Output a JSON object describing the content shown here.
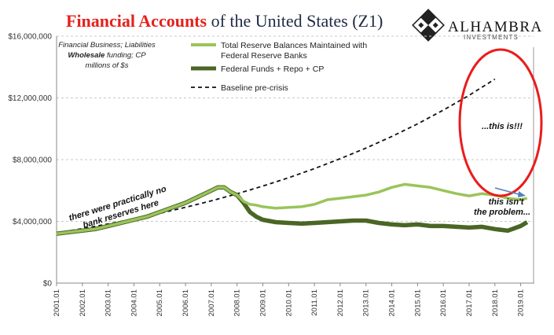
{
  "title": {
    "part1": "Financial Accounts",
    "part2": "of the United States (Z1)"
  },
  "logo": {
    "name": "ALHAMBRA",
    "sub": "INVESTMENTS"
  },
  "colors": {
    "title_red": "#e4211c",
    "reserves": "#9ac45a",
    "funding": "#4a6625",
    "baseline": "#111111",
    "ellipse": "#ea1c1c",
    "arrow": "#4f81bd",
    "grid": "#c8c8c8"
  },
  "note": {
    "line1": "Financial Business; Liabilities",
    "line2a": "Wholesale",
    "line2b": " funding; CP",
    "line3": "millions of $s"
  },
  "annotations": {
    "reserves_note": {
      "line1": "there were practically no",
      "line2": "bank reserves here"
    },
    "this_is": "...this is!!!",
    "this_isnt": {
      "line1": "this isn't",
      "line2": "the problem..."
    }
  },
  "chart_data": {
    "type": "line",
    "x_tick_labels": [
      "2001.01",
      "2002.01",
      "2003.01",
      "2004.01",
      "2005.01",
      "2006.01",
      "2007.01",
      "2008.01",
      "2009.01",
      "2010.01",
      "2011.01",
      "2012.01",
      "2013.01",
      "2014.01",
      "2015.01",
      "2016.01",
      "2017.01",
      "2018.01",
      "2019.01"
    ],
    "y_tick_labels": [
      "$0",
      "$4,000,000",
      "$8,000,000",
      "$12,000,000",
      "$16,000,000"
    ],
    "ylim": [
      0,
      16000000
    ],
    "xlim": [
      2001.0,
      2019.5
    ],
    "grid": true,
    "legend_position": "top-center",
    "series": [
      {
        "name": "Total Reserve Balances Maintained with Federal Reserve Banks",
        "legend_line1": "Total Reserve Balances Maintained with",
        "legend_line2": "Federal Reserve Banks",
        "x": [
          2001.0,
          2001.5,
          2002.0,
          2002.5,
          2003.0,
          2003.5,
          2004.0,
          2004.5,
          2005.0,
          2005.5,
          2006.0,
          2006.5,
          2007.0,
          2007.25,
          2007.5,
          2007.75,
          2008.0,
          2008.25,
          2008.5,
          2008.75,
          2009.0,
          2009.5,
          2010.0,
          2010.5,
          2011.0,
          2011.5,
          2012.0,
          2012.5,
          2013.0,
          2013.5,
          2014.0,
          2014.5,
          2015.0,
          2015.5,
          2016.0,
          2016.5,
          2017.0,
          2017.5,
          2018.0,
          2018.5,
          2019.0,
          2019.25
        ],
        "y": [
          3200000,
          3300000,
          3400000,
          3500000,
          3700000,
          3900000,
          4100000,
          4300000,
          4600000,
          4900000,
          5200000,
          5600000,
          6000000,
          6200000,
          6200000,
          5900000,
          5700000,
          5300000,
          5100000,
          5050000,
          4950000,
          4850000,
          4900000,
          4950000,
          5100000,
          5400000,
          5500000,
          5600000,
          5700000,
          5900000,
          6200000,
          6400000,
          6300000,
          6200000,
          6000000,
          5800000,
          5650000,
          5800000,
          5700000,
          5500000,
          5400000,
          5500000
        ]
      },
      {
        "name": "Federal Funds + Repo + CP",
        "x": [
          2001.0,
          2001.5,
          2002.0,
          2002.5,
          2003.0,
          2003.5,
          2004.0,
          2004.5,
          2005.0,
          2005.5,
          2006.0,
          2006.5,
          2007.0,
          2007.25,
          2007.5,
          2007.75,
          2008.0,
          2008.25,
          2008.5,
          2008.75,
          2009.0,
          2009.5,
          2010.0,
          2010.5,
          2011.0,
          2011.5,
          2012.0,
          2012.5,
          2013.0,
          2013.5,
          2014.0,
          2014.5,
          2015.0,
          2015.5,
          2016.0,
          2016.5,
          2017.0,
          2017.5,
          2018.0,
          2018.5,
          2019.0,
          2019.25
        ],
        "y": [
          3200000,
          3300000,
          3400000,
          3500000,
          3700000,
          3900000,
          4100000,
          4300000,
          4600000,
          4900000,
          5200000,
          5600000,
          6000000,
          6200000,
          6200000,
          5900000,
          5700000,
          5200000,
          4600000,
          4300000,
          4100000,
          3950000,
          3900000,
          3850000,
          3900000,
          3950000,
          4000000,
          4050000,
          4050000,
          3900000,
          3800000,
          3750000,
          3800000,
          3700000,
          3700000,
          3650000,
          3600000,
          3650000,
          3500000,
          3400000,
          3700000,
          3950000
        ]
      },
      {
        "name": "Baseline pre-crisis",
        "x": [
          2001.0,
          2002.0,
          2003.0,
          2004.0,
          2005.0,
          2006.0,
          2007.0,
          2008.0,
          2009.0,
          2010.0,
          2011.0,
          2012.0,
          2013.0,
          2014.0,
          2015.0,
          2016.0,
          2017.0,
          2018.0
        ],
        "y": [
          3250000,
          3530000,
          3830000,
          4160000,
          4520000,
          4910000,
          5330000,
          5790000,
          6290000,
          6830000,
          7420000,
          8060000,
          8750000,
          9500000,
          10320000,
          11210000,
          12170000,
          13220000
        ]
      }
    ]
  }
}
